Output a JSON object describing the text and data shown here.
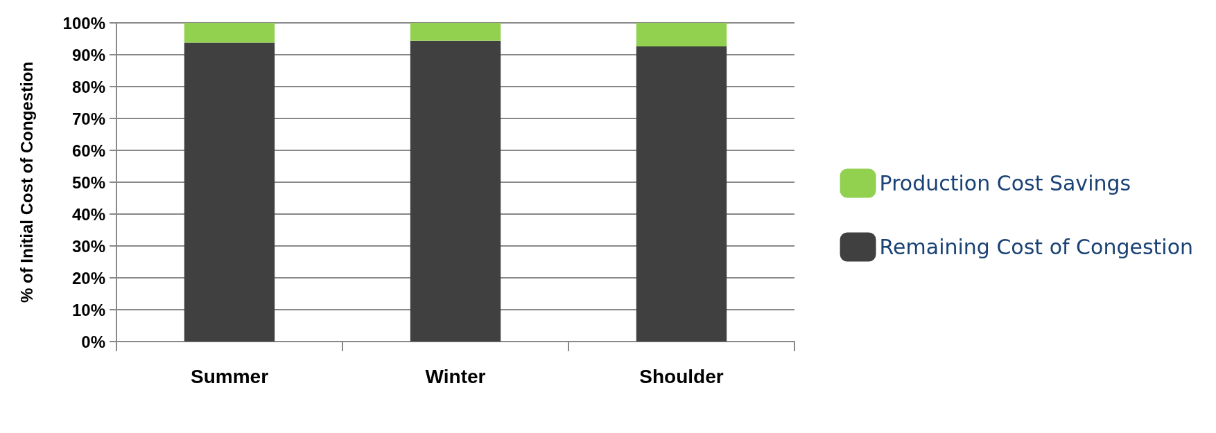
{
  "chart_data": {
    "type": "bar",
    "stacked": true,
    "ylabel": "% of Initial Cost of Congestion",
    "categories": [
      "Summer",
      "Winter",
      "Shoulder"
    ],
    "series": [
      {
        "name": "Remaining Cost of Congestion",
        "color": "#404040",
        "values": [
          93.8,
          94.4,
          92.6
        ]
      },
      {
        "name": "Production Cost Savings",
        "color": "#92d050",
        "values": [
          6.2,
          5.6,
          7.4
        ]
      }
    ],
    "ylim": [
      0,
      100
    ],
    "yticks": [
      {
        "value": 0,
        "label": "0%"
      },
      {
        "value": 10,
        "label": "10%"
      },
      {
        "value": 20,
        "label": "20%"
      },
      {
        "value": 30,
        "label": "30%"
      },
      {
        "value": 40,
        "label": "40%"
      },
      {
        "value": 50,
        "label": "50%"
      },
      {
        "value": 60,
        "label": "60%"
      },
      {
        "value": 70,
        "label": "70%"
      },
      {
        "value": 80,
        "label": "80%"
      },
      {
        "value": 90,
        "label": "90%"
      },
      {
        "value": 100,
        "label": "100%"
      }
    ],
    "grid": "y",
    "legend": "right"
  }
}
